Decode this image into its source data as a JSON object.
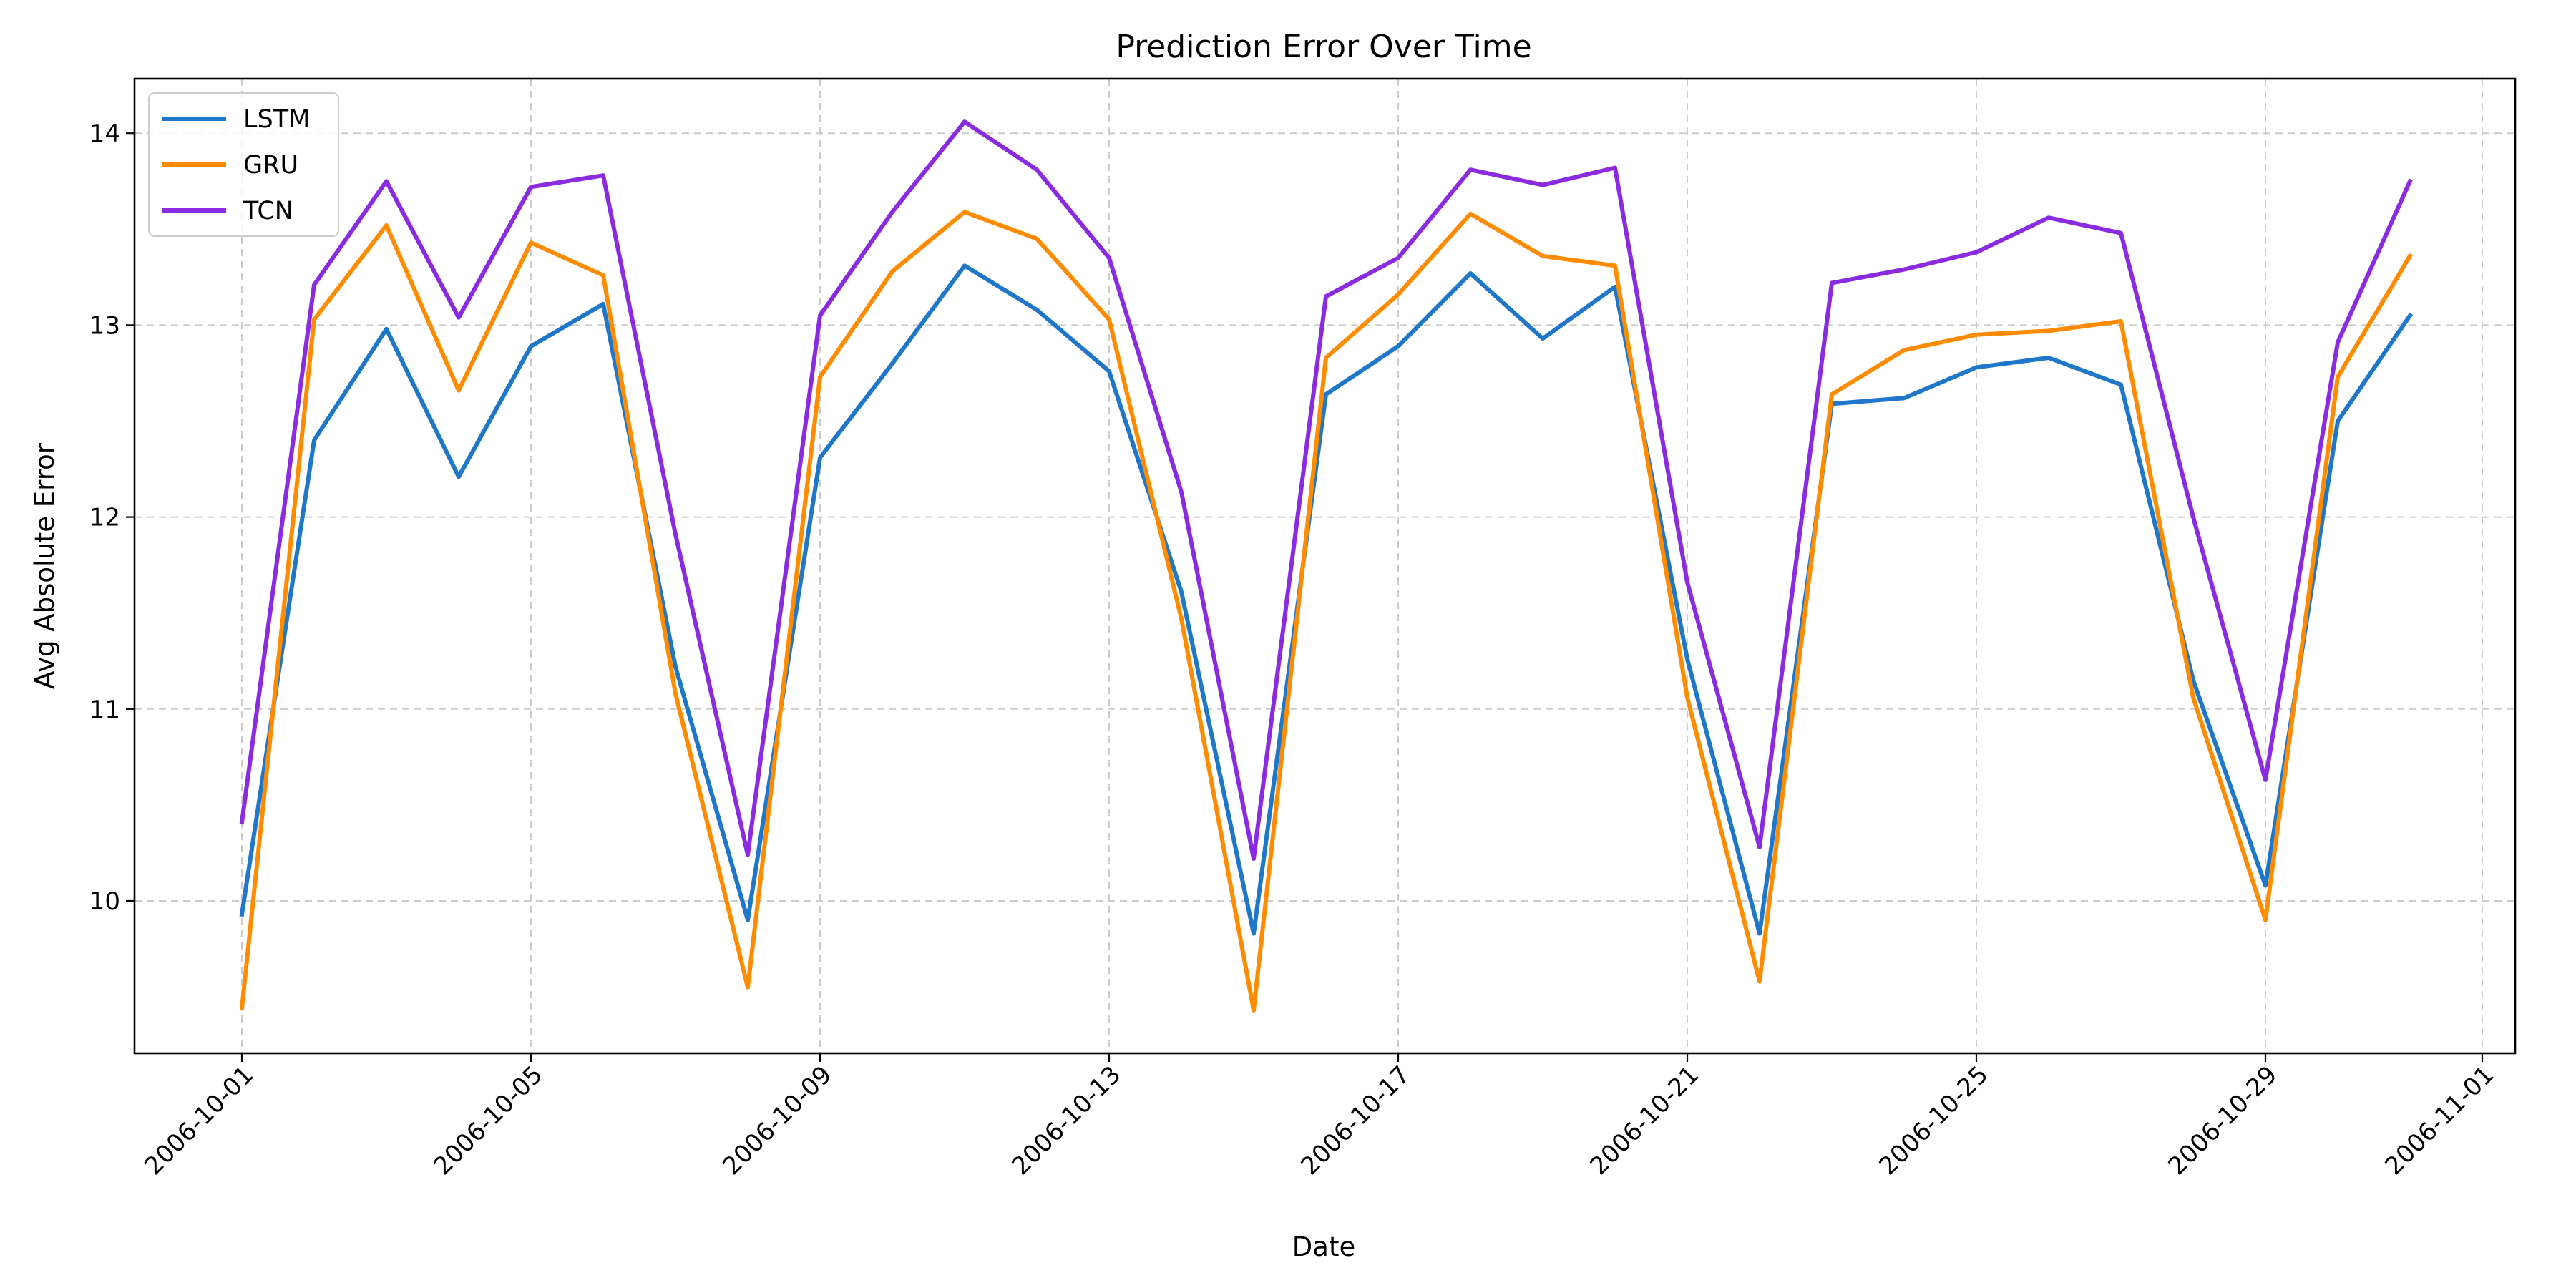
{
  "chart_data": {
    "type": "line",
    "title": "Prediction Error Over Time",
    "xlabel": "Date",
    "ylabel": "Avg Absolute Error",
    "x_ticks": [
      "2006-10-01",
      "2006-10-05",
      "2006-10-09",
      "2006-10-13",
      "2006-10-17",
      "2006-10-21",
      "2006-10-25",
      "2006-10-29",
      "2006-11-01"
    ],
    "y_ticks": [
      "10",
      "11",
      "12",
      "13",
      "14"
    ],
    "xlim": [
      "2006-09-29",
      "2007-11-01"
    ],
    "ylim": [
      9.2,
      14.3
    ],
    "grid": true,
    "legend_position": "upper-left",
    "x": [
      "2006-10-01",
      "2006-10-02",
      "2006-10-03",
      "2006-10-04",
      "2006-10-05",
      "2006-10-06",
      "2006-10-07",
      "2006-10-08",
      "2006-10-09",
      "2006-10-10",
      "2006-10-11",
      "2006-10-12",
      "2006-10-13",
      "2006-10-14",
      "2006-10-15",
      "2006-10-16",
      "2006-10-17",
      "2006-10-18",
      "2006-10-19",
      "2006-10-20",
      "2006-10-21",
      "2006-10-22",
      "2006-10-23",
      "2006-10-24",
      "2006-10-25",
      "2006-10-26",
      "2006-10-27",
      "2006-10-28",
      "2006-10-29",
      "2006-10-30",
      "2006-10-31"
    ],
    "series": [
      {
        "name": "LSTM",
        "color": "#1f77c9",
        "values": [
          9.93,
          12.4,
          12.98,
          12.21,
          12.89,
          13.11,
          11.22,
          9.9,
          12.31,
          12.8,
          13.31,
          13.08,
          12.76,
          11.61,
          9.83,
          12.64,
          12.89,
          13.27,
          12.93,
          13.2,
          11.26,
          9.83,
          12.59,
          12.62,
          12.78,
          12.83,
          12.69,
          11.15,
          10.08,
          12.5,
          13.05
        ]
      },
      {
        "name": "GRU",
        "color": "#ff8c00",
        "values": [
          9.44,
          13.03,
          13.52,
          12.66,
          13.43,
          13.26,
          11.08,
          9.55,
          12.73,
          13.28,
          13.59,
          13.45,
          13.03,
          11.47,
          9.43,
          12.83,
          13.16,
          13.58,
          13.36,
          13.31,
          11.06,
          9.58,
          12.64,
          12.87,
          12.95,
          12.97,
          13.02,
          11.06,
          9.9,
          12.73,
          13.36
        ]
      },
      {
        "name": "TCN",
        "color": "#8a2be2",
        "values": [
          10.41,
          13.21,
          13.75,
          13.04,
          13.72,
          13.78,
          11.91,
          10.24,
          13.05,
          13.59,
          14.06,
          13.81,
          13.35,
          12.13,
          10.22,
          13.15,
          13.35,
          13.81,
          13.73,
          13.82,
          11.66,
          10.28,
          13.22,
          13.29,
          13.38,
          13.56,
          13.48,
          12.0,
          10.63,
          12.91,
          13.75
        ]
      }
    ]
  }
}
